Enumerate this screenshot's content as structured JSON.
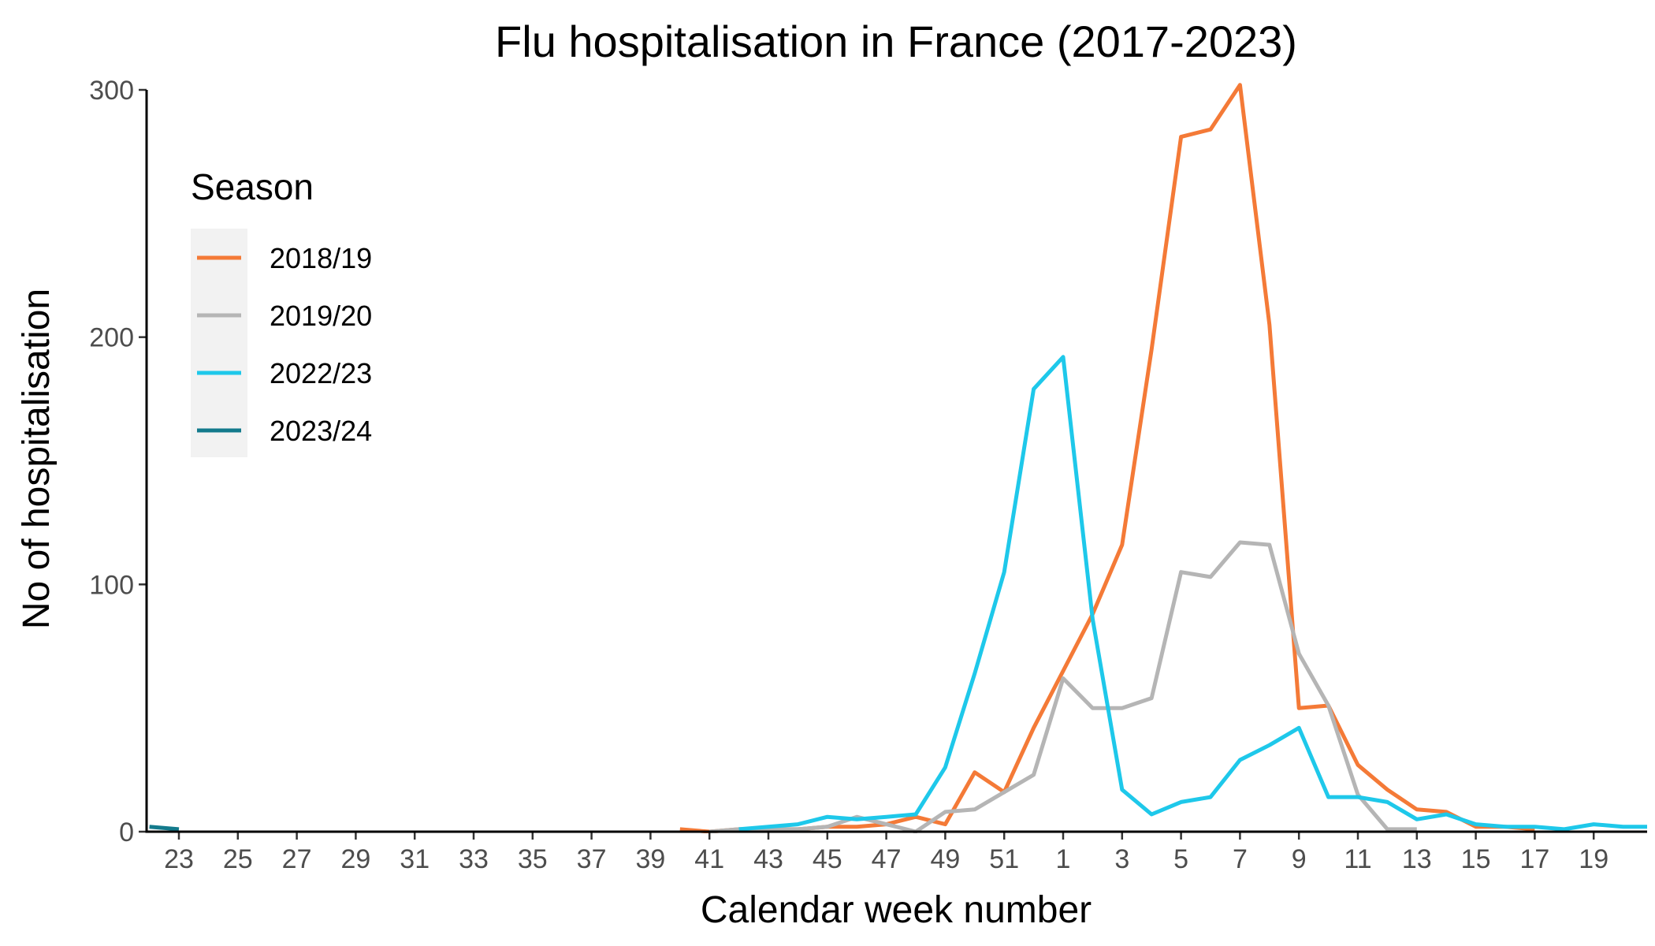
{
  "chart_data": {
    "type": "line",
    "title": "Flu hospitalisation in France (2017-2023)",
    "xlabel": "Calendar week number",
    "ylabel": "No of hospitalisation",
    "ylim": [
      0,
      300
    ],
    "yticks": [
      "0",
      "100",
      "200",
      "300"
    ],
    "xlim_index": [
      22,
      73
    ],
    "xticks": [
      {
        "i": 23,
        "label": "23"
      },
      {
        "i": 25,
        "label": "25"
      },
      {
        "i": 27,
        "label": "27"
      },
      {
        "i": 29,
        "label": "29"
      },
      {
        "i": 31,
        "label": "31"
      },
      {
        "i": 33,
        "label": "33"
      },
      {
        "i": 35,
        "label": "35"
      },
      {
        "i": 37,
        "label": "37"
      },
      {
        "i": 39,
        "label": "39"
      },
      {
        "i": 41,
        "label": "41"
      },
      {
        "i": 43,
        "label": "43"
      },
      {
        "i": 45,
        "label": "45"
      },
      {
        "i": 47,
        "label": "47"
      },
      {
        "i": 49,
        "label": "49"
      },
      {
        "i": 51,
        "label": "51"
      },
      {
        "i": 53,
        "label": "1"
      },
      {
        "i": 55,
        "label": "3"
      },
      {
        "i": 57,
        "label": "5"
      },
      {
        "i": 59,
        "label": "7"
      },
      {
        "i": 61,
        "label": "9"
      },
      {
        "i": 63,
        "label": "11"
      },
      {
        "i": 65,
        "label": "13"
      },
      {
        "i": 67,
        "label": "15"
      },
      {
        "i": 69,
        "label": "17"
      },
      {
        "i": 71,
        "label": "19"
      }
    ],
    "grid": false,
    "legend": {
      "title": "Season",
      "placement": "top-left"
    },
    "series": [
      {
        "name": "2018/19",
        "color": "#f47a37",
        "x": [
          40,
          41,
          42,
          43,
          44,
          45,
          46,
          47,
          48,
          49,
          50,
          51,
          52,
          53,
          54,
          55,
          56,
          57,
          58,
          59,
          60,
          61,
          62,
          63,
          64,
          65,
          66,
          67,
          68,
          69
        ],
        "y": [
          1,
          0,
          1,
          1,
          1,
          2,
          2,
          3,
          6,
          3,
          24,
          16,
          42,
          65,
          88,
          116,
          195,
          281,
          284,
          302,
          205,
          50,
          51,
          27,
          17,
          9,
          8,
          2,
          2,
          1
        ]
      },
      {
        "name": "2019/20",
        "color": "#b5b5b5",
        "x": [
          41,
          42,
          43,
          44,
          45,
          46,
          47,
          48,
          49,
          50,
          51,
          52,
          53,
          54,
          55,
          56,
          57,
          58,
          59,
          60,
          61,
          62,
          63,
          64,
          65
        ],
        "y": [
          0,
          1,
          1,
          1,
          2,
          6,
          3,
          0,
          8,
          9,
          16,
          23,
          62,
          50,
          50,
          54,
          105,
          103,
          117,
          116,
          72,
          51,
          15,
          1,
          1
        ]
      },
      {
        "name": "2022/23",
        "color": "#1ec8ea",
        "x": [
          42,
          43,
          44,
          45,
          46,
          47,
          48,
          49,
          50,
          51,
          52,
          53,
          54,
          55,
          56,
          57,
          58,
          59,
          60,
          61,
          62,
          63,
          64,
          65,
          66,
          67,
          68,
          69,
          70,
          71,
          72,
          73
        ],
        "y": [
          1,
          2,
          3,
          6,
          5,
          6,
          7,
          26,
          64,
          105,
          179,
          192,
          86,
          17,
          7,
          12,
          14,
          29,
          35,
          42,
          14,
          14,
          12,
          5,
          7,
          3,
          2,
          2,
          1,
          3,
          2,
          2
        ]
      },
      {
        "name": "2023/24",
        "color": "#137a8c",
        "x": [
          22,
          23
        ],
        "y": [
          2,
          1
        ]
      }
    ]
  }
}
